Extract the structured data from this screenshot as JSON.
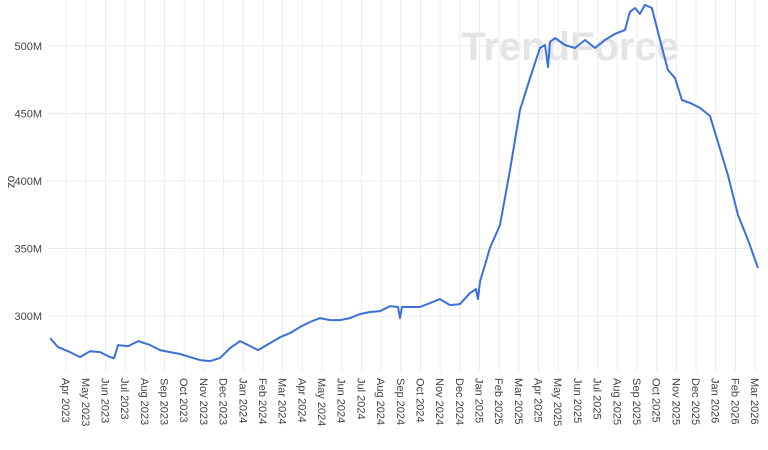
{
  "chart_data": {
    "type": "line",
    "watermark": "TrendForce",
    "y_label": "oz",
    "grid": true,
    "xlim": [
      -0.92,
      35.25
    ],
    "ylim": [
      258600000,
      534000000
    ],
    "yticks": [
      {
        "value": 300000000,
        "label": "300M"
      },
      {
        "value": 350000000,
        "label": "350M"
      },
      {
        "value": 400000000,
        "label": "400M"
      },
      {
        "value": 450000000,
        "label": "450M"
      },
      {
        "value": 500000000,
        "label": "500M"
      }
    ],
    "xticks": [
      {
        "value": 0,
        "label": "Apr 2023"
      },
      {
        "value": 1,
        "label": "May 2023"
      },
      {
        "value": 2,
        "label": "Jun 2023"
      },
      {
        "value": 3,
        "label": "Jul 2023"
      },
      {
        "value": 4,
        "label": "Aug 2023"
      },
      {
        "value": 5,
        "label": "Sep 2023"
      },
      {
        "value": 6,
        "label": "Oct 2023"
      },
      {
        "value": 7,
        "label": "Nov 2023"
      },
      {
        "value": 8,
        "label": "Dec 2023"
      },
      {
        "value": 9,
        "label": "Jan 2024"
      },
      {
        "value": 10,
        "label": "Feb 2024"
      },
      {
        "value": 11,
        "label": "Mar 2024"
      },
      {
        "value": 12,
        "label": "Apr 2024"
      },
      {
        "value": 13,
        "label": "May 2024"
      },
      {
        "value": 14,
        "label": "Jun 2024"
      },
      {
        "value": 15,
        "label": "Jul 2024"
      },
      {
        "value": 16,
        "label": "Aug 2024"
      },
      {
        "value": 17,
        "label": "Sep 2024"
      },
      {
        "value": 18,
        "label": "Oct 2024"
      },
      {
        "value": 19,
        "label": "Nov 2024"
      },
      {
        "value": 20,
        "label": "Dec 2024"
      },
      {
        "value": 21,
        "label": "Jan 2025"
      },
      {
        "value": 22,
        "label": "Feb 2025"
      },
      {
        "value": 23,
        "label": "Mar 2025"
      },
      {
        "value": 24,
        "label": "Apr 2025"
      },
      {
        "value": 25,
        "label": "May 2025"
      },
      {
        "value": 26,
        "label": "Jun 2025"
      },
      {
        "value": 27,
        "label": "Jul 2025"
      },
      {
        "value": 28,
        "label": "Aug 2025"
      },
      {
        "value": 29,
        "label": "Sep 2025"
      },
      {
        "value": 30,
        "label": "Oct 2025"
      },
      {
        "value": 31,
        "label": "Nov 2025"
      },
      {
        "value": 32,
        "label": "Dec 2025"
      },
      {
        "value": 33,
        "label": "Jan 2026"
      },
      {
        "value": 34,
        "label": "Feb 2026"
      },
      {
        "value": 35,
        "label": "Mar 2026"
      }
    ],
    "series": [
      {
        "color": "#3b6fd9",
        "x": [
          -0.81,
          -0.41,
          0.2,
          0.71,
          1.22,
          1.73,
          2.23,
          2.44,
          2.64,
          3.15,
          3.66,
          4.27,
          4.77,
          5.28,
          5.79,
          6.3,
          6.81,
          7.31,
          7.82,
          8.33,
          8.84,
          9.35,
          9.75,
          10.36,
          10.87,
          11.38,
          11.88,
          12.39,
          12.9,
          13.41,
          13.92,
          14.42,
          14.93,
          15.44,
          15.95,
          16.46,
          16.86,
          16.96,
          17.06,
          17.47,
          17.98,
          18.49,
          18.99,
          19.5,
          20.01,
          20.52,
          20.82,
          20.92,
          21.03,
          21.28,
          21.53,
          22.04,
          22.55,
          23.06,
          23.57,
          24.07,
          24.33,
          24.48,
          24.58,
          24.84,
          25.34,
          25.85,
          26.36,
          26.87,
          27.37,
          27.88,
          28.39,
          28.64,
          28.9,
          29.15,
          29.41,
          29.76,
          30.17,
          30.57,
          30.93,
          31.28,
          31.69,
          32.2,
          32.71,
          33.11,
          33.62,
          34.13,
          34.64,
          35.15
        ],
        "values": [
          283700000,
          277000000,
          273300000,
          269600000,
          274000000,
          273300000,
          269600000,
          268900000,
          278500000,
          277800000,
          281500000,
          278500000,
          274800000,
          273300000,
          271900000,
          269600000,
          267400000,
          266700000,
          268900000,
          276300000,
          281500000,
          277800000,
          274800000,
          280000000,
          284400000,
          287400000,
          291900000,
          295600000,
          298500000,
          297000000,
          297000000,
          298500000,
          301500000,
          303000000,
          303700000,
          307400000,
          306700000,
          298500000,
          306700000,
          306700000,
          306700000,
          309600000,
          312600000,
          308100000,
          308900000,
          317000000,
          320000000,
          312600000,
          325900000,
          337800000,
          350400000,
          367400000,
          408100000,
          452600000,
          476300000,
          498500000,
          500700000,
          484400000,
          503000000,
          505900000,
          500700000,
          498500000,
          504400000,
          498500000,
          504400000,
          508900000,
          511900000,
          525200000,
          528100000,
          523700000,
          530400000,
          528100000,
          504400000,
          482200000,
          476300000,
          460000000,
          457800000,
          454100000,
          448100000,
          428900000,
          404400000,
          374800000,
          356300000,
          335600000
        ]
      }
    ]
  }
}
